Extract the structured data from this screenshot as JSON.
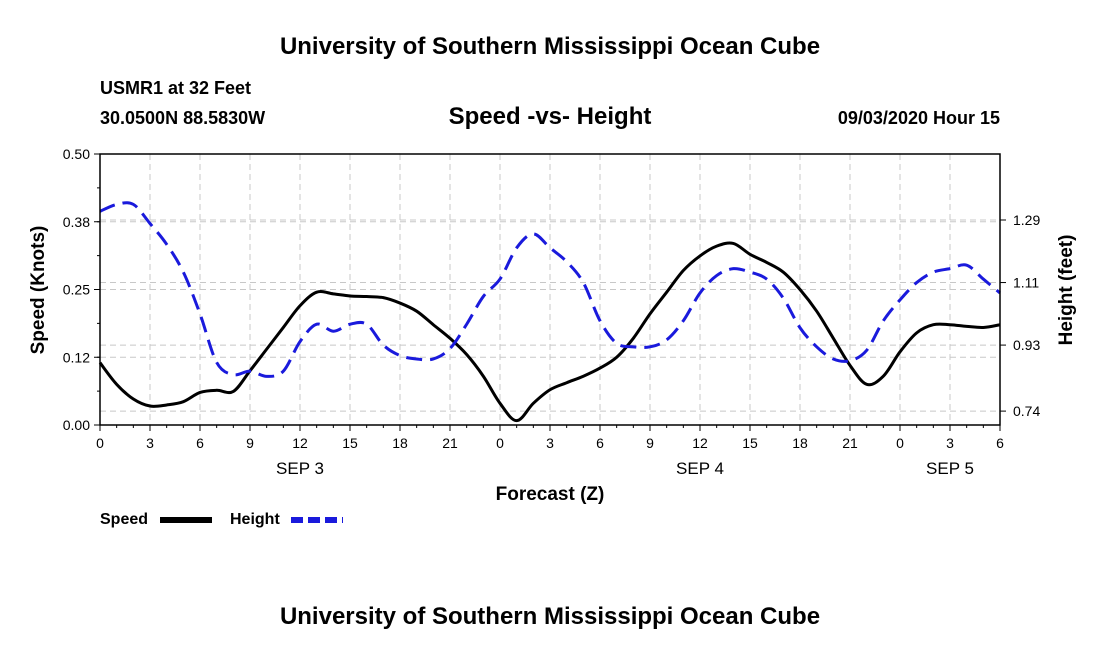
{
  "header": {
    "title_top": "University of Southern Mississippi Ocean Cube",
    "title_bottom": "University of Southern Mississippi Ocean Cube",
    "station": "USMR1 at 32 Feet",
    "location": "30.0500N 88.5830W",
    "chart_title": "Speed -vs- Height",
    "datetime": "09/03/2020 Hour 15"
  },
  "legend": {
    "speed_label": "Speed",
    "height_label": "Height"
  },
  "colors": {
    "speed": "#000000",
    "height": "#1a1adc"
  },
  "chart_data": {
    "type": "line",
    "title": "Speed -vs- Height",
    "xlabel": "Forecast (Z)",
    "ylabel": "Speed (Knots)",
    "y2label": "Height (feet)",
    "xlim": [
      0,
      54
    ],
    "ylim": [
      0,
      0.5
    ],
    "y2lim": [
      0.7,
      1.48
    ],
    "x_ticks": [
      0,
      3,
      6,
      9,
      12,
      15,
      18,
      21,
      24,
      27,
      30,
      33,
      36,
      39,
      42,
      45,
      48,
      51,
      54
    ],
    "x_tick_labels": [
      "0",
      "3",
      "6",
      "9",
      "12",
      "15",
      "18",
      "21",
      "0",
      "3",
      "6",
      "9",
      "12",
      "15",
      "18",
      "21",
      "0",
      "3",
      "6"
    ],
    "y_ticks": [
      0.0,
      0.125,
      0.25,
      0.375,
      0.5
    ],
    "y_tick_labels": [
      "0.00",
      "0.12",
      "0.25",
      "0.38",
      "0.50"
    ],
    "y2_ticks": [
      0.74,
      0.93,
      1.11,
      1.29
    ],
    "y2_tick_labels": [
      "0.74",
      "0.93",
      "1.11",
      "1.29"
    ],
    "day_labels": [
      {
        "x": 12,
        "label": "SEP 3"
      },
      {
        "x": 36,
        "label": "SEP 4"
      },
      {
        "x": 51,
        "label": "SEP 5"
      }
    ],
    "series": [
      {
        "name": "Speed",
        "axis": "left",
        "style": "solid",
        "x": [
          0,
          1,
          2,
          3,
          4,
          5,
          6,
          7,
          8,
          9,
          10,
          11,
          12,
          13,
          14,
          15,
          16,
          17,
          18,
          19,
          20,
          21,
          22,
          23,
          24,
          25,
          26,
          27,
          28,
          29,
          30,
          31,
          32,
          33,
          34,
          35,
          36,
          37,
          38,
          39,
          40,
          41,
          42,
          43,
          44,
          45,
          46,
          47,
          48,
          49,
          50,
          51,
          52,
          53,
          54
        ],
        "values": [
          0.115,
          0.075,
          0.048,
          0.035,
          0.037,
          0.043,
          0.06,
          0.064,
          0.062,
          0.1,
          0.14,
          0.18,
          0.22,
          0.245,
          0.242,
          0.238,
          0.237,
          0.235,
          0.225,
          0.21,
          0.185,
          0.16,
          0.13,
          0.09,
          0.04,
          0.008,
          0.04,
          0.065,
          0.078,
          0.09,
          0.105,
          0.125,
          0.16,
          0.205,
          0.245,
          0.285,
          0.312,
          0.33,
          0.335,
          0.315,
          0.3,
          0.282,
          0.25,
          0.21,
          0.16,
          0.11,
          0.075,
          0.09,
          0.135,
          0.17,
          0.185,
          0.185,
          0.182,
          0.18,
          0.185
        ]
      },
      {
        "name": "Height",
        "axis": "right",
        "style": "dashed",
        "x": [
          0,
          1,
          2,
          3,
          4,
          5,
          6,
          7,
          8,
          9,
          10,
          11,
          12,
          13,
          14,
          15,
          16,
          17,
          18,
          19,
          20,
          21,
          22,
          23,
          24,
          25,
          26,
          27,
          28,
          29,
          30,
          31,
          32,
          33,
          34,
          35,
          36,
          37,
          38,
          39,
          40,
          41,
          42,
          43,
          44,
          45,
          46,
          47,
          48,
          49,
          50,
          51,
          52,
          53,
          54
        ],
        "values": [
          1.315,
          1.335,
          1.335,
          1.28,
          1.22,
          1.14,
          1.02,
          0.88,
          0.845,
          0.855,
          0.84,
          0.855,
          0.94,
          0.99,
          0.97,
          0.99,
          0.99,
          0.93,
          0.9,
          0.89,
          0.89,
          0.92,
          0.99,
          1.07,
          1.12,
          1.21,
          1.25,
          1.21,
          1.17,
          1.11,
          1.0,
          0.935,
          0.925,
          0.925,
          0.945,
          1.0,
          1.08,
          1.13,
          1.15,
          1.14,
          1.12,
          1.065,
          0.98,
          0.925,
          0.89,
          0.885,
          0.915,
          1.0,
          1.06,
          1.11,
          1.14,
          1.15,
          1.16,
          1.12,
          1.08
        ]
      }
    ],
    "legend_position": "bottom-left",
    "grid": true
  }
}
